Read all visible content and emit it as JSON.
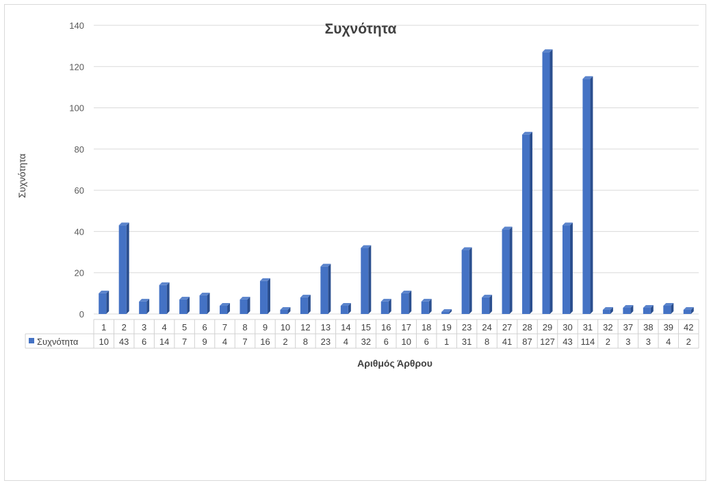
{
  "chart_data": {
    "type": "bar",
    "title": "Συχνότητα",
    "xlabel": "Αριθμός Άρθρου",
    "ylabel": "Συχνότητα",
    "ylim": [
      0,
      140
    ],
    "yticks": [
      0,
      20,
      40,
      60,
      80,
      100,
      120,
      140
    ],
    "grid": true,
    "legend": "data-table",
    "categories": [
      "1",
      "2",
      "3",
      "4",
      "5",
      "6",
      "7",
      "8",
      "9",
      "10",
      "12",
      "13",
      "14",
      "15",
      "16",
      "17",
      "18",
      "19",
      "23",
      "24",
      "27",
      "28",
      "29",
      "30",
      "31",
      "32",
      "37",
      "38",
      "39",
      "42"
    ],
    "series": [
      {
        "name": "Συχνότητα",
        "color": "#4472c4",
        "values": [
          10,
          43,
          6,
          14,
          7,
          9,
          4,
          7,
          16,
          2,
          8,
          23,
          4,
          32,
          6,
          10,
          6,
          1,
          31,
          8,
          41,
          87,
          127,
          43,
          114,
          2,
          3,
          3,
          4,
          2
        ]
      }
    ]
  }
}
